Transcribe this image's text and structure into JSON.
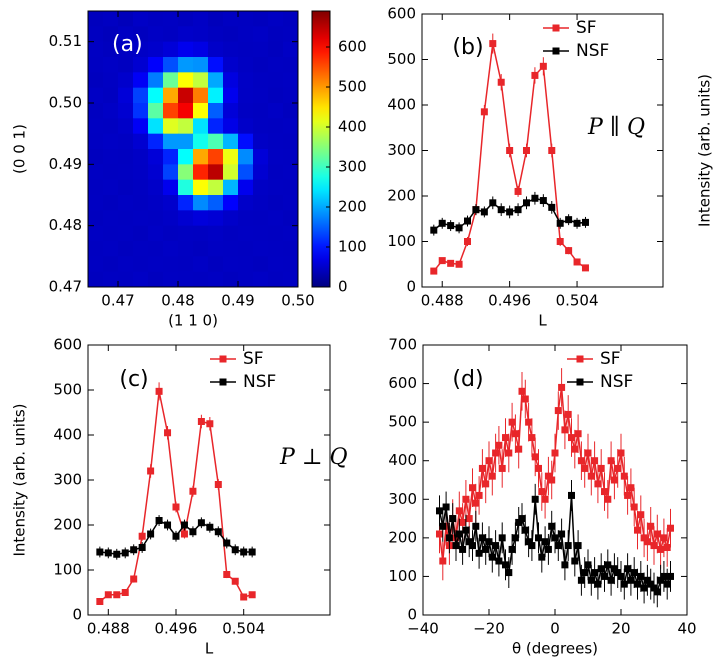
{
  "chart_data": [
    {
      "type": "heatmap",
      "annotation": "(a)",
      "xlabel": "(1 1 0)",
      "ylabel": "(0 0 1)",
      "xlim": [
        0.465,
        0.5
      ],
      "ylim": [
        0.47,
        0.515
      ],
      "xticks": [
        0.47,
        0.48,
        0.49,
        {
          "value": 0.5,
          "label": "0.50"
        }
      ],
      "yticks": [
        0.47,
        0.48,
        0.49,
        {
          "value": 0.5,
          "label": "0.50"
        },
        0.51
      ],
      "zlim": [
        0,
        690
      ],
      "zticks": [
        0,
        100,
        200,
        300,
        400,
        500,
        600
      ],
      "colormap": "jet",
      "z": [
        [
          42,
          45,
          40,
          48,
          44,
          46,
          43,
          47,
          41,
          45,
          44,
          42,
          46,
          43
        ],
        [
          44,
          41,
          46,
          43,
          47,
          45,
          50,
          48,
          44,
          42,
          45,
          47,
          43,
          44
        ],
        [
          46,
          43,
          45,
          48,
          52,
          60,
          75,
          68,
          50,
          46,
          44,
          45,
          42,
          47
        ],
        [
          45,
          47,
          44,
          55,
          85,
          140,
          190,
          185,
          95,
          52,
          46,
          43,
          45,
          44
        ],
        [
          43,
          46,
          52,
          80,
          170,
          330,
          430,
          390,
          200,
          65,
          48,
          45,
          44,
          46
        ],
        [
          47,
          44,
          60,
          130,
          260,
          490,
          640,
          520,
          250,
          75,
          47,
          46,
          43,
          45
        ],
        [
          44,
          48,
          55,
          120,
          320,
          560,
          610,
          430,
          150,
          60,
          46,
          44,
          47,
          43
        ],
        [
          46,
          45,
          50,
          80,
          240,
          410,
          390,
          240,
          110,
          70,
          50,
          45,
          44,
          46
        ],
        [
          45,
          47,
          46,
          55,
          110,
          190,
          190,
          270,
          310,
          210,
          95,
          48,
          45,
          44
        ],
        [
          43,
          45,
          44,
          48,
          60,
          110,
          260,
          490,
          560,
          420,
          180,
          60,
          46,
          45
        ],
        [
          46,
          44,
          45,
          47,
          55,
          130,
          350,
          580,
          650,
          400,
          140,
          55,
          44,
          46
        ],
        [
          44,
          46,
          43,
          45,
          50,
          75,
          280,
          430,
          390,
          210,
          75,
          47,
          45,
          44
        ],
        [
          45,
          43,
          46,
          44,
          47,
          52,
          110,
          180,
          150,
          85,
          50,
          46,
          43,
          45
        ],
        [
          43,
          45,
          44,
          46,
          45,
          48,
          55,
          62,
          58,
          50,
          45,
          44,
          46,
          43
        ],
        [
          46,
          44,
          45,
          43,
          47,
          44,
          46,
          45,
          47,
          44,
          46,
          45,
          44,
          46
        ],
        [
          44,
          46,
          43,
          45,
          44,
          47,
          45,
          43,
          46,
          45,
          44,
          46,
          45,
          44
        ],
        [
          45,
          43,
          46,
          44,
          46,
          45,
          44,
          47,
          43,
          46,
          45,
          43,
          46,
          45
        ],
        [
          43,
          45,
          44,
          47,
          43,
          46,
          45,
          44,
          46,
          43,
          45,
          47,
          44,
          46
        ]
      ]
    },
    {
      "type": "line",
      "annotation": "(b)",
      "text": "P ∥ Q",
      "xlabel": "L",
      "ylabel": "Intensity (arb. units)",
      "ylabel_side": "right",
      "x": [
        0.487,
        0.488,
        0.489,
        0.49,
        0.491,
        0.492,
        0.493,
        0.494,
        0.495,
        0.496,
        0.497,
        0.498,
        0.499,
        0.5,
        0.501,
        0.502,
        0.503,
        0.504,
        0.505
      ],
      "xlim": [
        0.4856,
        0.5142
      ],
      "xticks": [
        0.488,
        0.496,
        0.504
      ],
      "ylim": [
        0,
        600
      ],
      "yticks": [
        0,
        100,
        200,
        300,
        400,
        500,
        600
      ],
      "legend": "upper right",
      "series": [
        {
          "name": "SF",
          "color": "#e8262a",
          "values": [
            35,
            58,
            52,
            50,
            100,
            170,
            385,
            535,
            450,
            300,
            210,
            300,
            465,
            485,
            300,
            100,
            80,
            55,
            42
          ],
          "errors": [
            6,
            6,
            6,
            6,
            10,
            12,
            15,
            22,
            18,
            15,
            12,
            15,
            18,
            20,
            15,
            10,
            8,
            7,
            6
          ]
        },
        {
          "name": "NSF",
          "color": "#000000",
          "values": [
            125,
            140,
            135,
            130,
            145,
            170,
            165,
            185,
            170,
            165,
            170,
            185,
            195,
            190,
            175,
            140,
            148,
            140,
            142
          ],
          "errors": [
            12,
            12,
            12,
            12,
            12,
            12,
            12,
            14,
            14,
            14,
            14,
            14,
            14,
            14,
            14,
            12,
            12,
            12,
            12
          ]
        }
      ]
    },
    {
      "type": "line",
      "annotation": "(c)",
      "text": "P ⊥ Q",
      "xlabel": "L",
      "ylabel": "Intensity (arb. units)",
      "ylabel_side": "left",
      "x": [
        0.487,
        0.488,
        0.489,
        0.49,
        0.491,
        0.492,
        0.493,
        0.494,
        0.495,
        0.496,
        0.497,
        0.498,
        0.499,
        0.5,
        0.501,
        0.502,
        0.503,
        0.504,
        0.505
      ],
      "xlim": [
        0.4856,
        0.5142
      ],
      "xticks": [
        0.488,
        0.496,
        0.504
      ],
      "ylim": [
        0,
        600
      ],
      "yticks": [
        0,
        100,
        200,
        300,
        400,
        500,
        600
      ],
      "legend": "upper right",
      "series": [
        {
          "name": "SF",
          "color": "#e8262a",
          "values": [
            30,
            45,
            45,
            50,
            80,
            175,
            320,
            497,
            405,
            240,
            180,
            275,
            430,
            425,
            290,
            90,
            75,
            40,
            45
          ],
          "errors": [
            5,
            6,
            6,
            6,
            8,
            10,
            15,
            20,
            15,
            12,
            10,
            12,
            15,
            15,
            12,
            8,
            7,
            6,
            6
          ]
        },
        {
          "name": "NSF",
          "color": "#000000",
          "values": [
            140,
            138,
            135,
            138,
            145,
            150,
            180,
            210,
            200,
            175,
            200,
            185,
            205,
            195,
            185,
            160,
            145,
            140,
            140
          ],
          "errors": [
            12,
            12,
            12,
            12,
            12,
            12,
            12,
            12,
            12,
            12,
            12,
            12,
            12,
            12,
            12,
            12,
            12,
            12,
            12
          ]
        }
      ]
    },
    {
      "type": "line",
      "annotation": "(d)",
      "xlabel": "θ (degrees)",
      "x": [
        -35,
        -34,
        -33,
        -32,
        -31,
        -30,
        -29,
        -28,
        -27,
        -26,
        -25,
        -24,
        -23,
        -22,
        -21,
        -20,
        -19,
        -18,
        -17,
        -16,
        -15,
        -14,
        -13,
        -12,
        -11,
        -10,
        -9,
        -8,
        -7,
        -6,
        -5,
        -4,
        -3,
        -2,
        -1,
        0,
        1,
        2,
        3,
        4,
        5,
        6,
        7,
        8,
        9,
        10,
        11,
        12,
        13,
        14,
        15,
        16,
        17,
        18,
        19,
        20,
        21,
        22,
        23,
        24,
        25,
        26,
        27,
        28,
        29,
        30,
        31,
        32,
        33,
        34,
        35
      ],
      "xlim": [
        -40,
        40
      ],
      "xticks": [
        {
          "value": -40,
          "label": "−40"
        },
        {
          "value": -20,
          "label": "−20"
        },
        0,
        20,
        40
      ],
      "ylim": [
        0,
        700
      ],
      "yticks": [
        0,
        100,
        200,
        300,
        400,
        500,
        600,
        700
      ],
      "legend": "upper right",
      "series": [
        {
          "name": "SF",
          "color": "#e8262a",
          "values": [
            210,
            140,
            230,
            180,
            250,
            200,
            270,
            240,
            300,
            250,
            330,
            290,
            310,
            380,
            340,
            400,
            360,
            420,
            440,
            380,
            460,
            420,
            500,
            470,
            430,
            580,
            560,
            500,
            460,
            410,
            380,
            320,
            300,
            360,
            350,
            420,
            530,
            590,
            480,
            520,
            460,
            430,
            470,
            400,
            380,
            420,
            360,
            400,
            340,
            380,
            320,
            300,
            400,
            350,
            380,
            420,
            360,
            310,
            330,
            280,
            220,
            260,
            200,
            190,
            230,
            180,
            210,
            170,
            200,
            175,
            225
          ],
          "errors": [
            50,
            50,
            50,
            50,
            50,
            50,
            50,
            50,
            50,
            50,
            50,
            50,
            50,
            50,
            50,
            50,
            50,
            50,
            50,
            50,
            50,
            50,
            50,
            50,
            50,
            50,
            50,
            50,
            50,
            50,
            50,
            50,
            50,
            50,
            50,
            50,
            50,
            50,
            50,
            50,
            50,
            50,
            50,
            50,
            50,
            50,
            50,
            50,
            50,
            50,
            50,
            50,
            50,
            50,
            50,
            50,
            50,
            50,
            50,
            50,
            50,
            50,
            50,
            50,
            50,
            50,
            50,
            50,
            50,
            50,
            50
          ]
        },
        {
          "name": "NSF",
          "color": "#000000",
          "values": [
            270,
            230,
            280,
            200,
            250,
            180,
            210,
            170,
            220,
            190,
            180,
            230,
            160,
            200,
            170,
            190,
            150,
            180,
            140,
            200,
            130,
            110,
            170,
            200,
            240,
            250,
            220,
            190,
            180,
            300,
            200,
            150,
            190,
            170,
            230,
            200,
            180,
            210,
            130,
            180,
            310,
            140,
            180,
            90,
            110,
            130,
            90,
            110,
            80,
            120,
            100,
            130,
            90,
            120,
            110,
            100,
            80,
            120,
            90,
            110,
            80,
            100,
            70,
            90,
            80,
            70,
            60,
            90,
            100,
            80,
            100
          ],
          "errors": [
            40,
            40,
            40,
            40,
            40,
            40,
            40,
            40,
            40,
            40,
            40,
            40,
            40,
            40,
            40,
            40,
            40,
            40,
            40,
            40,
            40,
            40,
            40,
            40,
            40,
            40,
            40,
            40,
            40,
            40,
            40,
            40,
            40,
            40,
            40,
            40,
            40,
            40,
            40,
            40,
            40,
            40,
            40,
            40,
            40,
            40,
            40,
            40,
            40,
            40,
            40,
            40,
            40,
            40,
            40,
            40,
            40,
            40,
            40,
            40,
            40,
            40,
            40,
            40,
            40,
            40,
            40,
            40,
            40,
            40,
            40
          ]
        }
      ]
    }
  ]
}
